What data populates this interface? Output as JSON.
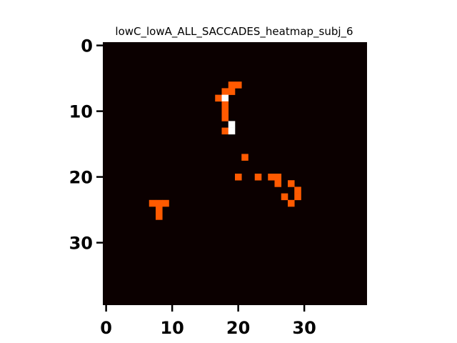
{
  "chart_data": {
    "type": "heatmap",
    "title": "lowC_lowA_ALL_SACCADES_heatmap_subj_6",
    "xlabel": "",
    "ylabel": "",
    "grid_size": [
      40,
      40
    ],
    "xlim": [
      -0.5,
      39.5
    ],
    "ylim": [
      39.5,
      -0.5
    ],
    "x_ticks": [
      0,
      10,
      20,
      30
    ],
    "y_ticks": [
      0,
      10,
      20,
      30
    ],
    "x_tick_labels": [
      "0",
      "10",
      "20",
      "30"
    ],
    "y_tick_labels": [
      "0",
      "10",
      "20",
      "30"
    ],
    "colormap": "hot",
    "background_value": 0,
    "colors": {
      "background": "#0b0000",
      "mid": "#ff5a00",
      "max": "#ffffff"
    },
    "cells": [
      {
        "x": 19,
        "y": 6,
        "value": 1
      },
      {
        "x": 20,
        "y": 6,
        "value": 1
      },
      {
        "x": 18,
        "y": 7,
        "value": 1
      },
      {
        "x": 19,
        "y": 7,
        "value": 1
      },
      {
        "x": 17,
        "y": 8,
        "value": 1
      },
      {
        "x": 18,
        "y": 8,
        "value": 2
      },
      {
        "x": 18,
        "y": 9,
        "value": 1
      },
      {
        "x": 18,
        "y": 10,
        "value": 1
      },
      {
        "x": 18,
        "y": 11,
        "value": 1
      },
      {
        "x": 19,
        "y": 12,
        "value": 2
      },
      {
        "x": 18,
        "y": 13,
        "value": 1
      },
      {
        "x": 19,
        "y": 13,
        "value": 2
      },
      {
        "x": 21,
        "y": 17,
        "value": 1
      },
      {
        "x": 20,
        "y": 20,
        "value": 1
      },
      {
        "x": 23,
        "y": 20,
        "value": 1
      },
      {
        "x": 25,
        "y": 20,
        "value": 1
      },
      {
        "x": 26,
        "y": 20,
        "value": 1
      },
      {
        "x": 26,
        "y": 21,
        "value": 1
      },
      {
        "x": 28,
        "y": 21,
        "value": 1
      },
      {
        "x": 29,
        "y": 22,
        "value": 1
      },
      {
        "x": 27,
        "y": 23,
        "value": 1
      },
      {
        "x": 29,
        "y": 23,
        "value": 1
      },
      {
        "x": 28,
        "y": 24,
        "value": 1
      },
      {
        "x": 7,
        "y": 24,
        "value": 1
      },
      {
        "x": 8,
        "y": 24,
        "value": 1
      },
      {
        "x": 9,
        "y": 24,
        "value": 1
      },
      {
        "x": 8,
        "y": 25,
        "value": 1
      },
      {
        "x": 8,
        "y": 26,
        "value": 1
      }
    ]
  }
}
